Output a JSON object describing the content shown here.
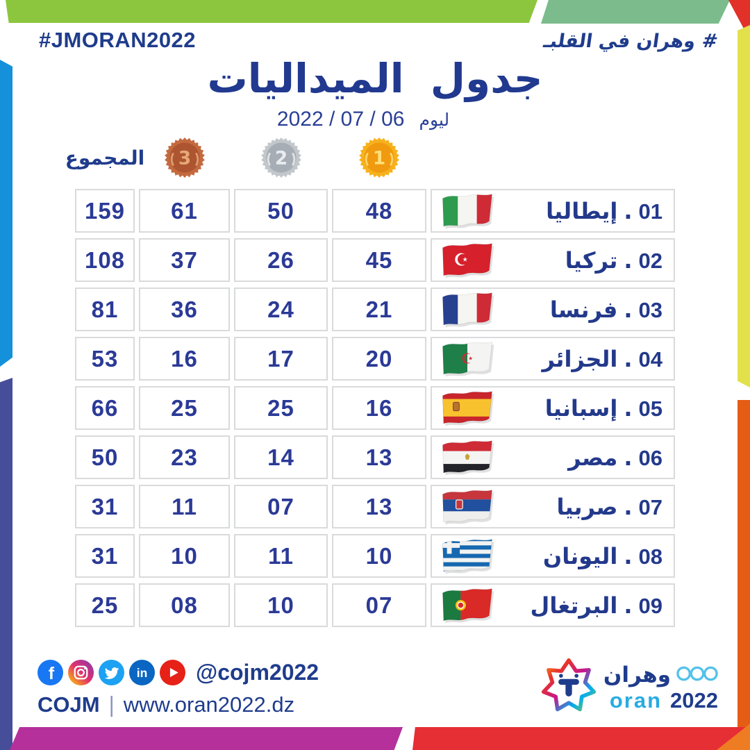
{
  "header": {
    "hashtag_latin": "#JMORAN2022",
    "hashtag_arabic": "# وهران في القلبـ",
    "title": "جدول الميداليات",
    "day_label": "ليوم",
    "date": "06 / 07 / 2022"
  },
  "table": {
    "total_label": "المجموع",
    "rank_separator": ".",
    "medals": [
      {
        "metal": "gold",
        "rank": "1"
      },
      {
        "metal": "silver",
        "rank": "2"
      },
      {
        "metal": "bronze",
        "rank": "3"
      }
    ],
    "rows": [
      {
        "rank": "01",
        "country": "إيطاليا",
        "flag": "italy",
        "gold": "48",
        "silver": "50",
        "bronze": "61",
        "total": "159"
      },
      {
        "rank": "02",
        "country": "تركيا",
        "flag": "turkey",
        "gold": "45",
        "silver": "26",
        "bronze": "37",
        "total": "108"
      },
      {
        "rank": "03",
        "country": "فرنسا",
        "flag": "france",
        "gold": "21",
        "silver": "24",
        "bronze": "36",
        "total": "81"
      },
      {
        "rank": "04",
        "country": "الجزائر",
        "flag": "algeria",
        "gold": "20",
        "silver": "17",
        "bronze": "16",
        "total": "53"
      },
      {
        "rank": "05",
        "country": "إسبانيا",
        "flag": "spain",
        "gold": "16",
        "silver": "25",
        "bronze": "25",
        "total": "66"
      },
      {
        "rank": "06",
        "country": "مصر",
        "flag": "egypt",
        "gold": "13",
        "silver": "14",
        "bronze": "23",
        "total": "50"
      },
      {
        "rank": "07",
        "country": "صربيا",
        "flag": "serbia",
        "gold": "13",
        "silver": "07",
        "bronze": "11",
        "total": "31"
      },
      {
        "rank": "08",
        "country": "اليونان",
        "flag": "greece",
        "gold": "10",
        "silver": "11",
        "bronze": "10",
        "total": "31"
      },
      {
        "rank": "09",
        "country": "البرتغال",
        "flag": "portugal",
        "gold": "07",
        "silver": "10",
        "bronze": "08",
        "total": "25"
      }
    ]
  },
  "chart_data": {
    "type": "table",
    "title": "جدول الميداليات",
    "subtitle": "ليوم 06 / 07 / 2022",
    "columns": [
      "rank",
      "country",
      "gold",
      "silver",
      "bronze",
      "total"
    ],
    "rows": [
      [
        1,
        "إيطاليا",
        48,
        50,
        61,
        159
      ],
      [
        2,
        "تركيا",
        45,
        26,
        37,
        108
      ],
      [
        3,
        "فرنسا",
        21,
        24,
        36,
        81
      ],
      [
        4,
        "الجزائر",
        20,
        17,
        16,
        53
      ],
      [
        5,
        "إسبانيا",
        16,
        25,
        25,
        66
      ],
      [
        6,
        "مصر",
        13,
        14,
        23,
        50
      ],
      [
        7,
        "صربيا",
        13,
        7,
        11,
        31
      ],
      [
        8,
        "اليونان",
        10,
        11,
        10,
        31
      ],
      [
        9,
        "البرتغال",
        7,
        10,
        8,
        25
      ]
    ]
  },
  "footer": {
    "social_handle": "@cojm2022",
    "org": "COJM",
    "separator": "|",
    "website": "www.oran2022.dz",
    "social_icons": [
      "facebook",
      "instagram",
      "twitter",
      "linkedin",
      "youtube"
    ],
    "logo": {
      "arabic": "وهران",
      "latin": "oran",
      "year": "2022"
    }
  },
  "colors": {
    "navy": "#1F3C8C",
    "number_blue": "#2B3A96",
    "light_blue": "#29ABE2",
    "cell_border": "#D9DADB",
    "frame_green_left": "#8CC63E",
    "frame_green_right": "#7CBB8B",
    "frame_blue": "#1590DB",
    "frame_purple": "#474E99",
    "frame_yellow": "#E2E14B",
    "frame_orange": "#E55C15",
    "frame_magenta": "#B5309B",
    "frame_red": "#E62E35",
    "medal_gold": "#F09A0F",
    "medal_silver": "#A6ADB4",
    "medal_bronze": "#AD5530"
  }
}
